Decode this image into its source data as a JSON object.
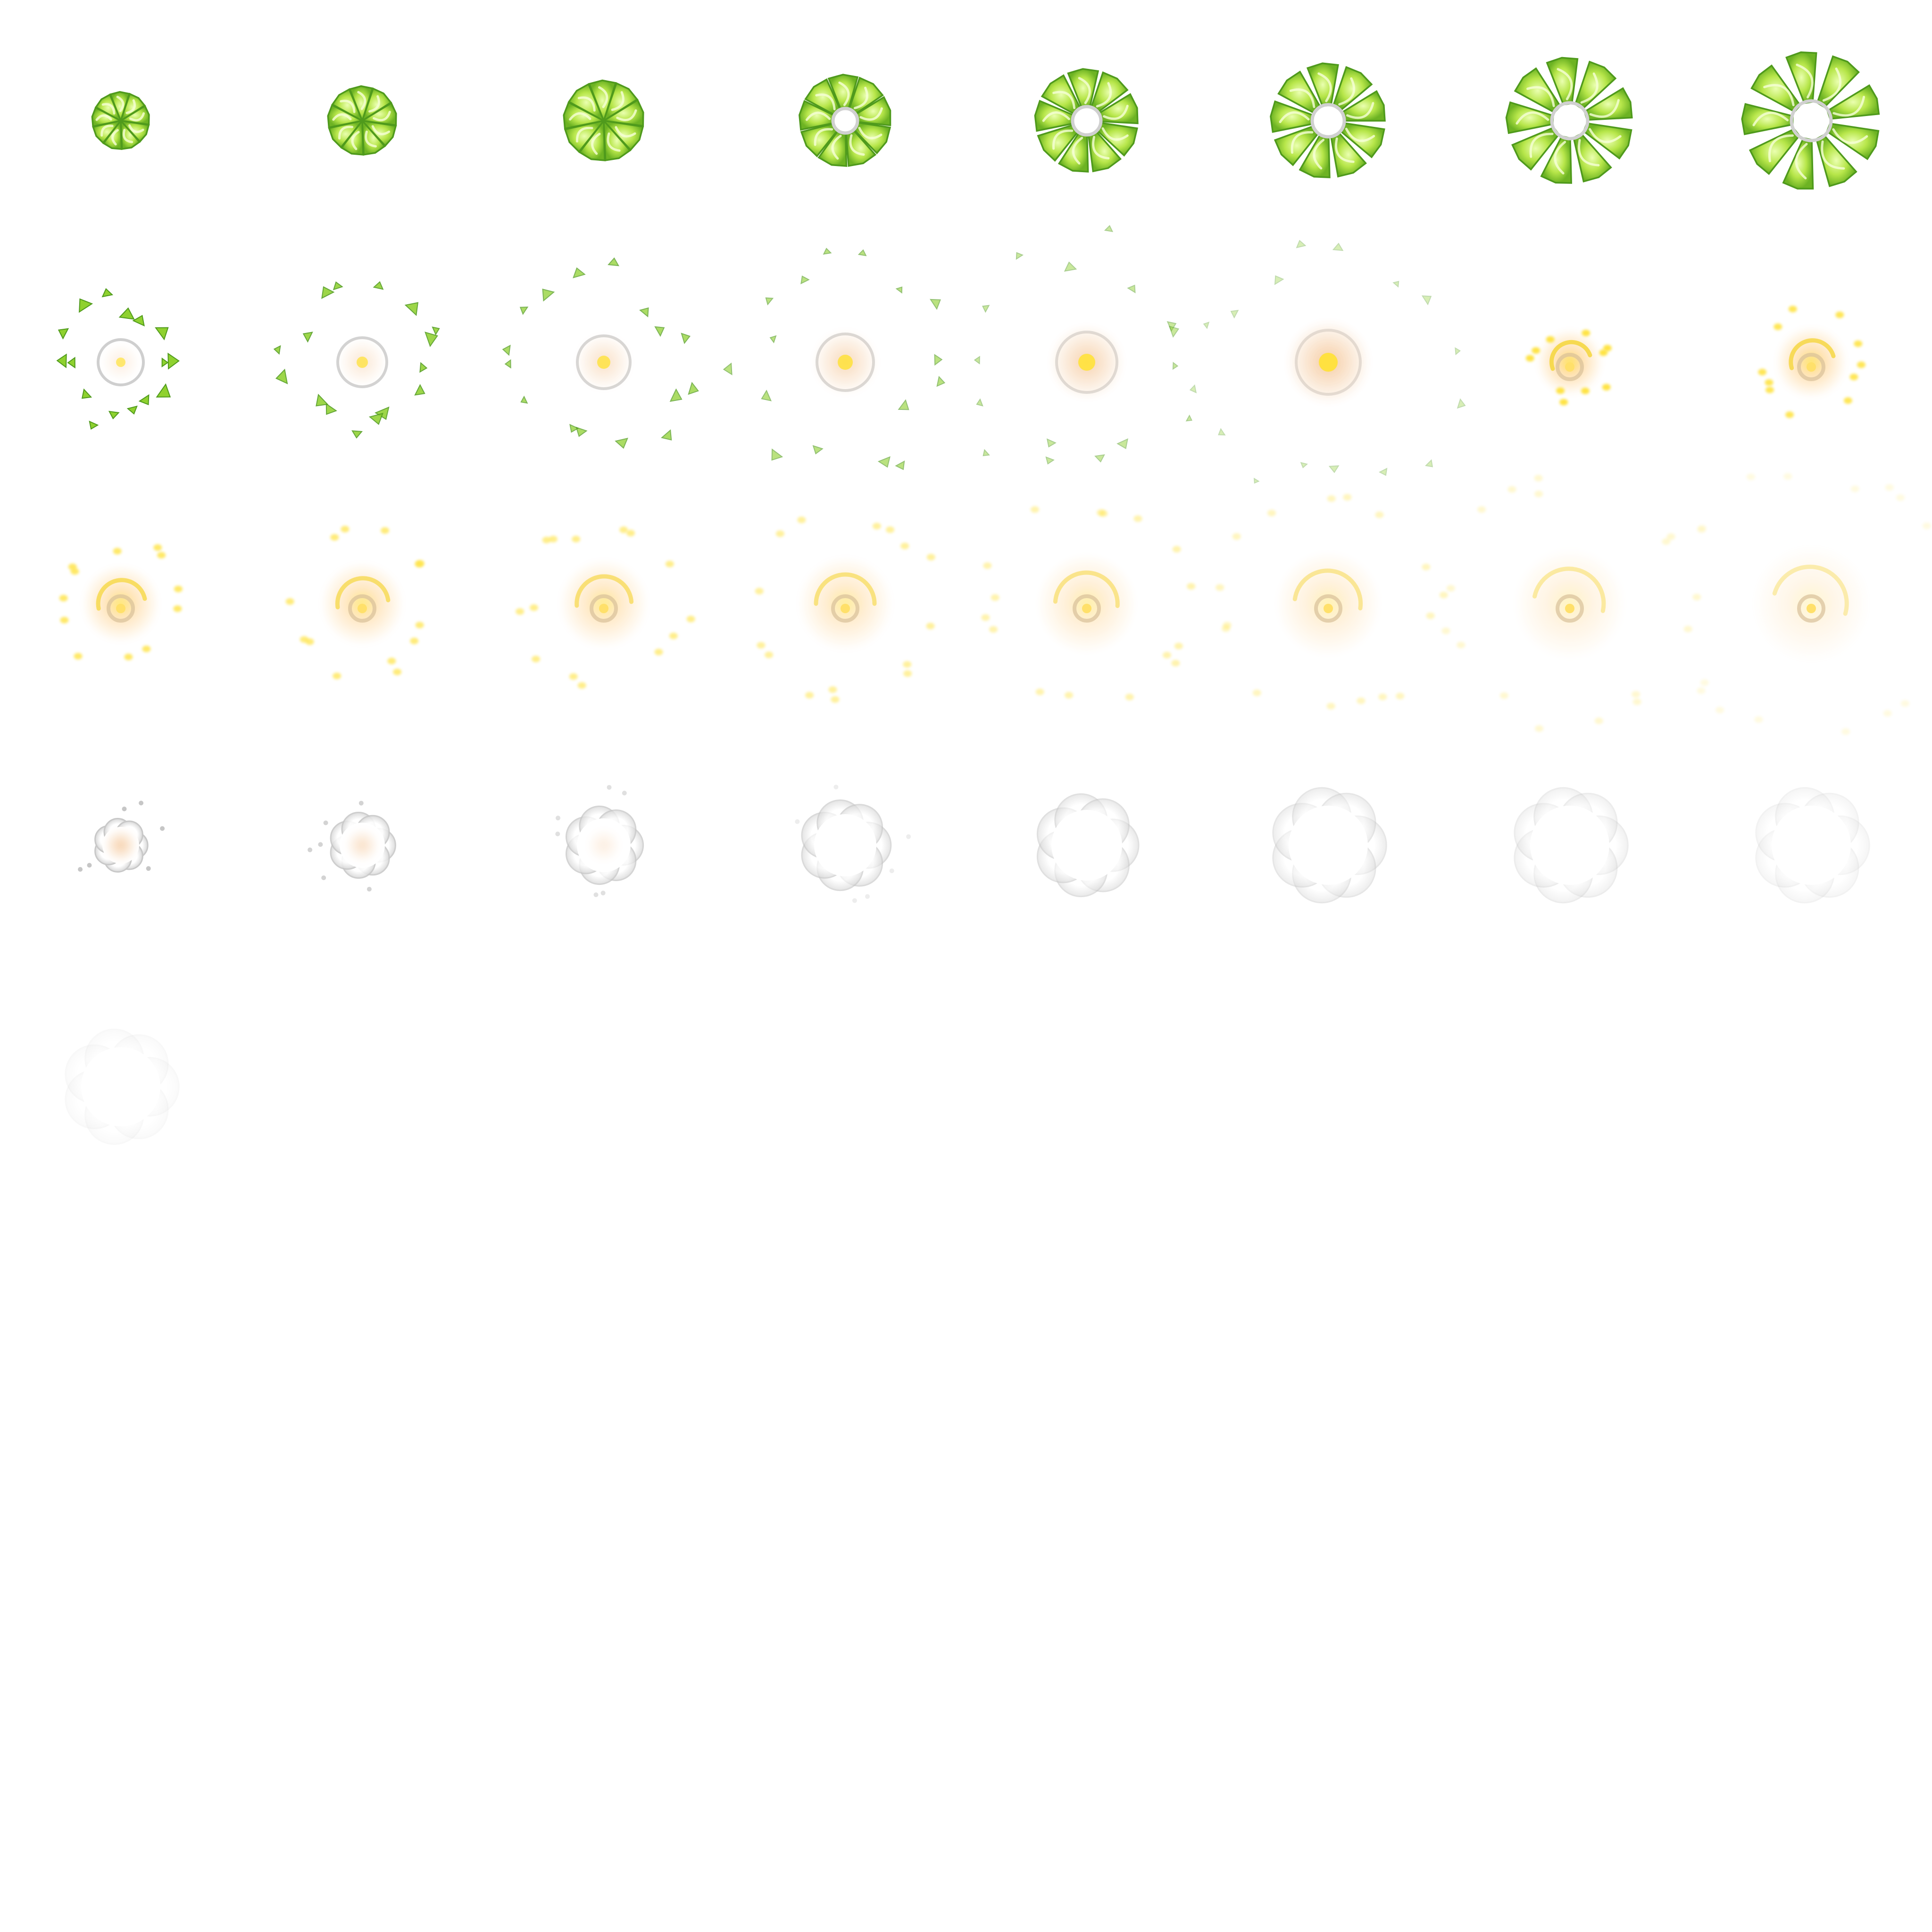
{
  "spritesheet": {
    "columns": 8,
    "filled_rows": 5,
    "frame_count": 33,
    "background": "#ffffff",
    "colors": {
      "shell_dark": "#4f9a1c",
      "shell_mid": "#8fd12f",
      "shell_light": "#d7f56a",
      "flash_core": "#ffe23a",
      "flash_glow": "#ffc46a",
      "smoke": "#c8c8c8",
      "smoke_light": "#e6e6e6"
    },
    "phases": [
      {
        "name": "intact",
        "frames": [
          0,
          1,
          2
        ]
      },
      {
        "name": "cracking",
        "frames": [
          3,
          4,
          5,
          6,
          7
        ]
      },
      {
        "name": "shards-fly",
        "frames": [
          8,
          9,
          10,
          11,
          12,
          13
        ]
      },
      {
        "name": "flash",
        "frames": [
          14,
          15,
          16,
          17,
          18,
          19,
          20,
          21,
          22,
          23
        ]
      },
      {
        "name": "smoke",
        "frames": [
          24,
          25,
          26,
          27,
          28,
          29,
          30,
          31,
          32
        ]
      }
    ]
  }
}
